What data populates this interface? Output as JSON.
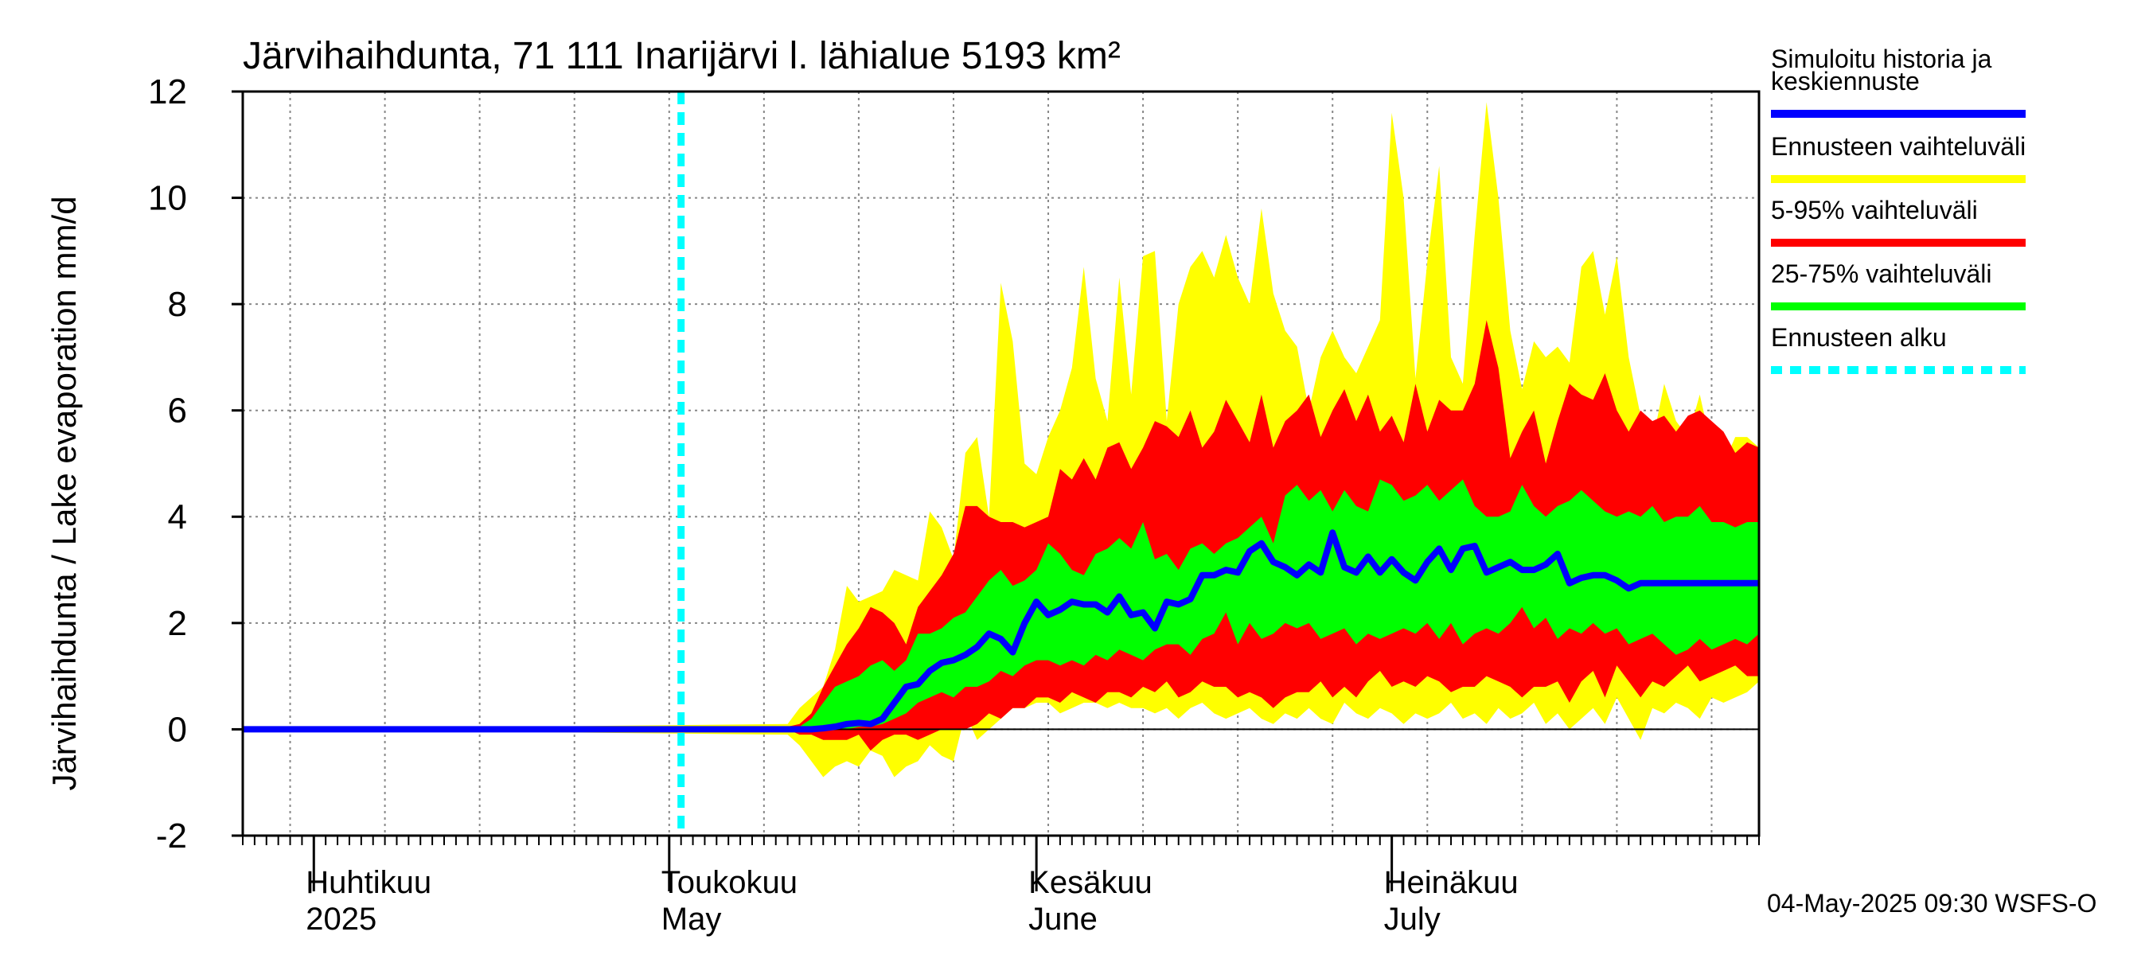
{
  "chart_data": {
    "type": "area",
    "title": "Järvihaihdunta, 71 111 Inarijärvi l. lähialue 5193 km²",
    "ylabel": "Järvihaihdunta / Lake evaporation   mm/d",
    "xlabel": "",
    "ylim": [
      -2,
      12
    ],
    "yticks": [
      -2,
      0,
      2,
      4,
      6,
      8,
      10,
      12
    ],
    "x_start_date": "2025-03-26",
    "x_end_date": "2025-08-02",
    "forecast_start_day": 37,
    "months": [
      {
        "day": 6,
        "label_fi": "Huhtikuu",
        "label_en": "2025"
      },
      {
        "day": 36,
        "label_fi": "Toukokuu",
        "label_en": "May"
      },
      {
        "day": 67,
        "label_fi": "Kesäkuu",
        "label_en": "June"
      },
      {
        "day": 97,
        "label_fi": "Heinäkuu",
        "label_en": "July"
      }
    ],
    "series": [
      {
        "name": "Ennusteen vaihteluväli",
        "color": "#ffff00",
        "x": [
          0,
          46,
          47,
          48,
          49,
          50,
          51,
          52,
          53,
          54,
          55,
          56,
          57,
          58,
          59,
          60,
          61,
          62,
          63,
          64,
          65,
          66,
          67,
          68,
          69,
          70,
          71,
          72,
          73,
          74,
          75,
          76,
          77,
          78,
          79,
          80,
          81,
          82,
          83,
          84,
          85,
          86,
          87,
          88,
          89,
          90,
          91,
          92,
          93,
          94,
          95,
          96,
          97,
          98,
          99,
          100,
          101,
          102,
          103,
          104,
          105,
          106,
          107,
          108,
          109,
          110,
          111,
          112,
          113,
          114,
          115,
          116,
          117,
          118,
          119,
          120,
          121,
          122,
          123,
          124,
          125,
          126,
          127,
          128
        ],
        "upper": [
          0,
          0.1,
          0.4,
          0.6,
          0.8,
          1.5,
          2.7,
          2.4,
          2.5,
          2.6,
          3.0,
          2.9,
          2.8,
          4.1,
          3.8,
          3.2,
          5.2,
          5.5,
          4.0,
          8.4,
          7.3,
          5.0,
          4.8,
          5.5,
          6.0,
          6.8,
          8.7,
          6.6,
          5.8,
          8.5,
          6.3,
          8.9,
          9.0,
          5.8,
          8.0,
          8.7,
          9.0,
          8.5,
          9.3,
          8.5,
          8.0,
          9.8,
          8.2,
          7.5,
          7.2,
          6.0,
          7.0,
          7.5,
          7.0,
          6.7,
          7.2,
          7.7,
          11.6,
          10.0,
          6.6,
          8.8,
          10.6,
          7.0,
          6.5,
          9.3,
          11.8,
          10.0,
          7.5,
          6.4,
          7.3,
          7.0,
          7.2,
          6.9,
          8.7,
          9.0,
          7.8,
          8.9,
          7.0,
          5.9,
          5.4,
          6.5,
          5.8,
          5.5,
          6.3,
          5.3,
          5.0,
          5.5,
          5.5,
          5.3
        ],
        "lower": [
          0,
          -0.1,
          -0.3,
          -0.6,
          -0.9,
          -0.7,
          -0.6,
          -0.7,
          -0.4,
          -0.5,
          -0.9,
          -0.7,
          -0.6,
          -0.3,
          -0.5,
          -0.6,
          0.3,
          -0.2,
          0.0,
          0.2,
          0.4,
          0.4,
          0.5,
          0.5,
          0.3,
          0.4,
          0.5,
          0.5,
          0.4,
          0.5,
          0.4,
          0.4,
          0.3,
          0.4,
          0.2,
          0.4,
          0.5,
          0.3,
          0.2,
          0.3,
          0.4,
          0.2,
          0.1,
          0.3,
          0.2,
          0.4,
          0.2,
          0.1,
          0.5,
          0.3,
          0.2,
          0.4,
          0.3,
          0.1,
          0.3,
          0.2,
          0.3,
          0.5,
          0.2,
          0.3,
          0.1,
          0.4,
          0.2,
          0.3,
          0.5,
          0.1,
          0.3,
          0.0,
          0.2,
          0.4,
          0.1,
          0.6,
          0.2,
          -0.2,
          0.4,
          0.3,
          0.5,
          0.4,
          0.2,
          0.6,
          0.5,
          0.6,
          0.7,
          0.9
        ]
      },
      {
        "name": "5-95% vaihteluväli",
        "color": "#ff0000",
        "x": [
          0,
          46,
          47,
          48,
          49,
          50,
          51,
          52,
          53,
          54,
          55,
          56,
          57,
          58,
          59,
          60,
          61,
          62,
          63,
          64,
          65,
          66,
          67,
          68,
          69,
          70,
          71,
          72,
          73,
          74,
          75,
          76,
          77,
          78,
          79,
          80,
          81,
          82,
          83,
          84,
          85,
          86,
          87,
          88,
          89,
          90,
          91,
          92,
          93,
          94,
          95,
          96,
          97,
          98,
          99,
          100,
          101,
          102,
          103,
          104,
          105,
          106,
          107,
          108,
          109,
          110,
          111,
          112,
          113,
          114,
          115,
          116,
          117,
          118,
          119,
          120,
          121,
          122,
          123,
          124,
          125,
          126,
          127,
          128
        ],
        "upper": [
          0,
          0.05,
          0.1,
          0.3,
          0.8,
          1.2,
          1.6,
          1.9,
          2.3,
          2.2,
          2.0,
          1.6,
          2.3,
          2.6,
          2.9,
          3.3,
          4.2,
          4.2,
          4.0,
          3.9,
          3.9,
          3.8,
          3.9,
          4.0,
          4.9,
          4.7,
          5.1,
          4.7,
          5.3,
          5.4,
          4.9,
          5.3,
          5.8,
          5.7,
          5.5,
          6.0,
          5.3,
          5.6,
          6.2,
          5.8,
          5.4,
          6.3,
          5.3,
          5.8,
          6.0,
          6.3,
          5.5,
          6.0,
          6.4,
          5.8,
          6.3,
          5.6,
          5.9,
          5.4,
          6.5,
          5.6,
          6.2,
          6.0,
          6.0,
          6.5,
          7.7,
          6.8,
          5.1,
          5.6,
          6.0,
          5.0,
          5.8,
          6.5,
          6.3,
          6.2,
          6.7,
          6.0,
          5.6,
          6.0,
          5.8,
          5.9,
          5.6,
          5.9,
          6.0,
          5.8,
          5.6,
          5.2,
          5.4,
          5.3
        ],
        "lower": [
          0,
          0.0,
          -0.1,
          -0.1,
          -0.2,
          -0.2,
          -0.2,
          -0.1,
          -0.4,
          -0.2,
          -0.1,
          -0.1,
          -0.2,
          -0.1,
          0.0,
          0.0,
          0.0,
          0.1,
          0.3,
          0.2,
          0.4,
          0.4,
          0.6,
          0.6,
          0.5,
          0.7,
          0.6,
          0.5,
          0.7,
          0.7,
          0.6,
          0.8,
          0.7,
          0.9,
          0.6,
          0.7,
          0.9,
          0.8,
          0.8,
          0.6,
          0.7,
          0.6,
          0.4,
          0.6,
          0.7,
          0.7,
          0.9,
          0.6,
          0.8,
          0.6,
          0.9,
          1.1,
          0.8,
          0.9,
          0.8,
          1.0,
          0.9,
          0.7,
          0.8,
          0.8,
          1.0,
          0.9,
          0.8,
          0.6,
          0.8,
          0.8,
          0.9,
          0.5,
          0.9,
          1.1,
          0.6,
          1.2,
          0.9,
          0.6,
          0.9,
          0.8,
          1.0,
          1.2,
          0.9,
          1.0,
          1.1,
          1.2,
          1.0,
          1.0
        ]
      },
      {
        "name": "25-75% vaihteluväli",
        "color": "#00ff00",
        "x": [
          0,
          46,
          47,
          48,
          49,
          50,
          51,
          52,
          53,
          54,
          55,
          56,
          57,
          58,
          59,
          60,
          61,
          62,
          63,
          64,
          65,
          66,
          67,
          68,
          69,
          70,
          71,
          72,
          73,
          74,
          75,
          76,
          77,
          78,
          79,
          80,
          81,
          82,
          83,
          84,
          85,
          86,
          87,
          88,
          89,
          90,
          91,
          92,
          93,
          94,
          95,
          96,
          97,
          98,
          99,
          100,
          101,
          102,
          103,
          104,
          105,
          106,
          107,
          108,
          109,
          110,
          111,
          112,
          113,
          114,
          115,
          116,
          117,
          118,
          119,
          120,
          121,
          122,
          123,
          124,
          125,
          126,
          127,
          128
        ],
        "upper": [
          0,
          0.02,
          0.05,
          0.2,
          0.5,
          0.8,
          0.9,
          1.0,
          1.2,
          1.3,
          1.1,
          1.3,
          1.8,
          1.8,
          1.9,
          2.1,
          2.2,
          2.5,
          2.8,
          3.0,
          2.7,
          2.8,
          3.0,
          3.5,
          3.3,
          3.0,
          2.9,
          3.3,
          3.4,
          3.6,
          3.4,
          3.9,
          3.2,
          3.3,
          3.0,
          3.4,
          3.5,
          3.3,
          3.5,
          3.6,
          3.8,
          4.0,
          3.5,
          4.4,
          4.6,
          4.3,
          4.5,
          4.1,
          4.5,
          4.2,
          4.1,
          4.7,
          4.6,
          4.3,
          4.4,
          4.6,
          4.3,
          4.5,
          4.7,
          4.2,
          4.0,
          4.0,
          4.1,
          4.6,
          4.2,
          4.0,
          4.2,
          4.3,
          4.5,
          4.3,
          4.1,
          4.0,
          4.1,
          4.0,
          4.2,
          3.9,
          4.0,
          4.0,
          4.2,
          3.9,
          3.9,
          3.8,
          3.9,
          3.9
        ],
        "lower": [
          0,
          0.0,
          0.0,
          0.0,
          0.0,
          0.0,
          0.0,
          0.05,
          0.05,
          0.1,
          0.2,
          0.3,
          0.5,
          0.6,
          0.7,
          0.6,
          0.8,
          0.8,
          0.9,
          1.1,
          1.0,
          1.2,
          1.3,
          1.3,
          1.2,
          1.3,
          1.2,
          1.4,
          1.3,
          1.5,
          1.4,
          1.3,
          1.5,
          1.6,
          1.6,
          1.4,
          1.7,
          1.8,
          2.2,
          1.6,
          2.0,
          1.7,
          1.8,
          2.0,
          1.9,
          2.0,
          1.7,
          1.8,
          1.9,
          1.6,
          1.8,
          1.7,
          1.8,
          1.9,
          1.8,
          2.0,
          1.7,
          2.0,
          1.6,
          1.8,
          1.9,
          1.8,
          2.0,
          2.3,
          1.9,
          2.1,
          1.7,
          1.9,
          1.8,
          2.0,
          1.8,
          1.9,
          1.6,
          1.7,
          1.8,
          1.6,
          1.4,
          1.5,
          1.7,
          1.5,
          1.6,
          1.7,
          1.6,
          1.8
        ]
      },
      {
        "name": "Simuloitu historia ja keskiennuste",
        "color": "#0000ff",
        "x": [
          0,
          46,
          47,
          48,
          49,
          50,
          51,
          52,
          53,
          54,
          55,
          56,
          57,
          58,
          59,
          60,
          61,
          62,
          63,
          64,
          65,
          66,
          67,
          68,
          69,
          70,
          71,
          72,
          73,
          74,
          75,
          76,
          77,
          78,
          79,
          80,
          81,
          82,
          83,
          84,
          85,
          86,
          87,
          88,
          89,
          90,
          91,
          92,
          93,
          94,
          95,
          96,
          97,
          98,
          99,
          100,
          101,
          102,
          103,
          104,
          105,
          106,
          107,
          108,
          109,
          110,
          111,
          112,
          113,
          114,
          115,
          116,
          117,
          118,
          119,
          120,
          121,
          122,
          123,
          124,
          125,
          126,
          127,
          128
        ],
        "values": [
          0,
          0.0,
          0.0,
          0.0,
          0.02,
          0.05,
          0.1,
          0.12,
          0.1,
          0.2,
          0.5,
          0.8,
          0.85,
          1.1,
          1.25,
          1.3,
          1.4,
          1.55,
          1.8,
          1.7,
          1.45,
          2.0,
          2.4,
          2.15,
          2.25,
          2.4,
          2.35,
          2.35,
          2.2,
          2.5,
          2.15,
          2.2,
          1.9,
          2.4,
          2.35,
          2.45,
          2.9,
          2.9,
          3.0,
          2.95,
          3.35,
          3.5,
          3.15,
          3.05,
          2.9,
          3.1,
          2.95,
          3.7,
          3.05,
          2.95,
          3.25,
          2.95,
          3.2,
          2.95,
          2.8,
          3.15,
          3.4,
          3.0,
          3.4,
          3.45,
          2.95,
          3.05,
          3.15,
          3.0,
          3.0,
          3.1,
          3.3,
          2.75,
          2.85,
          2.9,
          2.9,
          2.8,
          2.65,
          2.75,
          2.75,
          2.75,
          2.75,
          2.75,
          2.75,
          2.75,
          2.75,
          2.75,
          2.75,
          2.75
        ]
      }
    ],
    "legend": [
      {
        "label_lines": [
          "Simuloitu historia ja",
          "keskiennuste"
        ],
        "color": "#0000ff",
        "style": "solid"
      },
      {
        "label_lines": [
          "Ennusteen vaihteluväli"
        ],
        "color": "#ffff00",
        "style": "solid"
      },
      {
        "label_lines": [
          "5-95% vaihteluväli"
        ],
        "color": "#ff0000",
        "style": "solid"
      },
      {
        "label_lines": [
          "25-75% vaihteluväli"
        ],
        "color": "#00ff00",
        "style": "solid"
      },
      {
        "label_lines": [
          "Ennusteen alku"
        ],
        "color": "#00ffff",
        "style": "dashed"
      }
    ],
    "legend_position": "right",
    "footer": "04-May-2025 09:30 WSFS-O"
  }
}
